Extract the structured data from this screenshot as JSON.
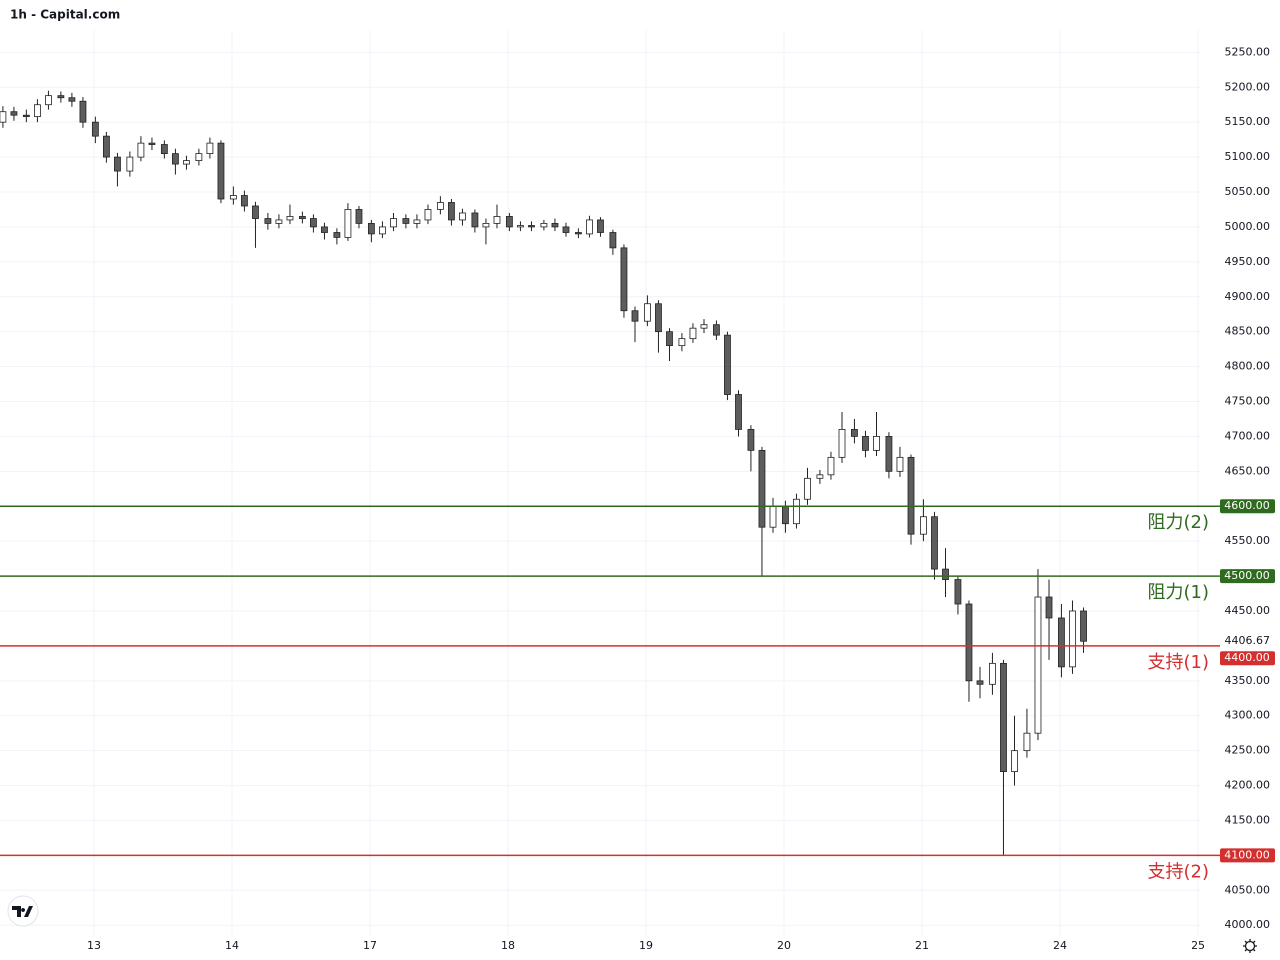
{
  "chart_data": {
    "type": "candlestick",
    "title": "1h - Capital.com",
    "x": [
      0.34,
      0.42,
      0.51,
      0.59,
      0.67,
      0.76,
      0.84,
      0.92,
      1.01,
      1.09,
      1.17,
      1.26,
      1.34,
      1.42,
      1.51,
      1.59,
      1.67,
      1.76,
      1.84,
      1.92,
      2.01,
      2.09,
      2.17,
      2.26,
      2.34,
      2.42,
      2.51,
      2.59,
      2.67,
      2.76,
      2.84,
      2.92,
      3.01,
      3.09,
      3.17,
      3.26,
      3.34,
      3.42,
      3.51,
      3.59,
      3.67,
      3.76,
      3.84,
      3.92,
      4.01,
      4.09,
      4.17,
      4.26,
      4.34,
      4.42,
      4.51,
      4.59,
      4.67,
      4.76,
      4.84,
      4.92,
      5.01,
      5.09,
      5.17,
      5.26,
      5.34,
      5.42,
      5.51,
      5.59,
      5.67,
      5.76,
      5.84,
      5.92,
      6.01,
      6.09,
      6.17,
      6.26,
      6.34,
      6.42,
      6.51,
      6.59,
      6.67,
      6.76,
      6.84,
      6.92,
      7.01,
      7.09,
      7.17,
      7.26,
      7.34,
      7.42,
      7.51,
      7.59,
      7.67,
      7.76,
      7.84,
      7.92,
      8.01,
      8.09,
      8.17
    ],
    "open": [
      5150,
      5165,
      5160,
      5158,
      5175,
      5188,
      5185,
      5180,
      5150,
      5130,
      5100,
      5080,
      5100,
      5120,
      5118,
      5105,
      5090,
      5095,
      5105,
      5120,
      5040,
      5045,
      5030,
      5012,
      5005,
      5010,
      5015,
      5012,
      5000,
      4992,
      4985,
      5025,
      5005,
      4990,
      5000,
      5012,
      5005,
      5010,
      5025,
      5035,
      5010,
      5020,
      5000,
      5005,
      5015,
      5000,
      5002,
      5000,
      5005,
      5000,
      4992,
      4990,
      5010,
      4992,
      4970,
      4880,
      4865,
      4890,
      4850,
      4830,
      4840,
      4855,
      4860,
      4845,
      4760,
      4710,
      4680,
      4570,
      4600,
      4575,
      4610,
      4640,
      4645,
      4670,
      4710,
      4700,
      4680,
      4700,
      4650,
      4670,
      4560,
      4585,
      4510,
      4495,
      4460,
      4350,
      4345,
      4375,
      4220,
      4250,
      4275,
      4470,
      4440,
      4370,
      4450
    ],
    "high": [
      5173,
      5172,
      5168,
      5183,
      5195,
      5194,
      5192,
      5186,
      5158,
      5136,
      5106,
      5108,
      5130,
      5128,
      5124,
      5112,
      5102,
      5112,
      5128,
      5124,
      5058,
      5052,
      5036,
      5020,
      5018,
      5032,
      5022,
      5018,
      5006,
      4998,
      5034,
      5030,
      5010,
      5008,
      5020,
      5018,
      5018,
      5032,
      5044,
      5040,
      5026,
      5025,
      5012,
      5032,
      5020,
      5008,
      5008,
      5010,
      5012,
      5006,
      4998,
      5016,
      5014,
      4996,
      4975,
      4886,
      4902,
      4895,
      4855,
      4848,
      4862,
      4868,
      4866,
      4850,
      4766,
      4716,
      4685,
      4612,
      4608,
      4618,
      4655,
      4652,
      4678,
      4735,
      4725,
      4708,
      4735,
      4706,
      4685,
      4674,
      4610,
      4592,
      4540,
      4500,
      4465,
      4370,
      4390,
      4380,
      4300,
      4310,
      4510,
      4495,
      4460,
      4465,
      4455
    ],
    "low": [
      5142,
      5152,
      5150,
      5150,
      5168,
      5178,
      5172,
      5142,
      5120,
      5092,
      5058,
      5072,
      5094,
      5110,
      5098,
      5075,
      5082,
      5088,
      5098,
      5034,
      5032,
      5022,
      4970,
      4996,
      4998,
      5004,
      5005,
      4992,
      4982,
      4975,
      4980,
      4998,
      4978,
      4984,
      4994,
      4998,
      4998,
      5004,
      5018,
      5002,
      5002,
      4992,
      4975,
      4998,
      4994,
      4994,
      4994,
      4995,
      4994,
      4986,
      4984,
      4985,
      4986,
      4960,
      4870,
      4835,
      4858,
      4820,
      4808,
      4822,
      4834,
      4848,
      4838,
      4752,
      4700,
      4650,
      4500,
      4562,
      4562,
      4568,
      4602,
      4632,
      4638,
      4662,
      4690,
      4670,
      4672,
      4640,
      4642,
      4545,
      4550,
      4495,
      4470,
      4445,
      4320,
      4325,
      4330,
      4100,
      4200,
      4240,
      4265,
      4380,
      4355,
      4360,
      4390
    ],
    "close": [
      5165,
      5160,
      5158,
      5175,
      5188,
      5185,
      5180,
      5150,
      5130,
      5100,
      5080,
      5100,
      5120,
      5118,
      5105,
      5090,
      5095,
      5105,
      5120,
      5040,
      5045,
      5030,
      5012,
      5005,
      5010,
      5015,
      5012,
      5000,
      4992,
      4985,
      5025,
      5005,
      4990,
      5000,
      5012,
      5005,
      5010,
      5025,
      5035,
      5010,
      5020,
      5000,
      5005,
      5015,
      5000,
      5002,
      5000,
      5005,
      5000,
      4992,
      4990,
      5010,
      4992,
      4970,
      4880,
      4865,
      4890,
      4850,
      4830,
      4840,
      4855,
      4860,
      4845,
      4760,
      4710,
      4680,
      4570,
      4600,
      4575,
      4610,
      4640,
      4645,
      4670,
      4710,
      4700,
      4680,
      4700,
      4650,
      4670,
      4560,
      4585,
      4510,
      4495,
      4460,
      4350,
      4345,
      4375,
      4220,
      4250,
      4275,
      4470,
      4440,
      4370,
      4450,
      4406.67
    ],
    "up_color": "#ffffff",
    "down_color": "#5d5d5d",
    "outline_color": "#222222",
    "levels": {
      "names": [
        "阻力(2)",
        "阻力(1)",
        "支持(1)",
        "支持(2)"
      ],
      "values": [
        4600,
        4500,
        4400,
        4100
      ],
      "value_labels": [
        "4600.00",
        "4500.00",
        "4400.00",
        "4100.00"
      ],
      "colors": [
        "#2e6b1e",
        "#2e6b1e",
        "#d32f2f",
        "#d32f2f"
      ]
    },
    "xlim": [
      0.319,
      9.014
    ],
    "xticks": [
      {
        "value": 1,
        "label": "13"
      },
      {
        "value": 2,
        "label": "14"
      },
      {
        "value": 3,
        "label": "17"
      },
      {
        "value": 4,
        "label": "18"
      },
      {
        "value": 5,
        "label": "19"
      },
      {
        "value": 6,
        "label": "20"
      },
      {
        "value": 7,
        "label": "21"
      },
      {
        "value": 8,
        "label": "24"
      },
      {
        "value": 9,
        "label": "25"
      }
    ],
    "ylim": [
      3986,
      5282
    ],
    "yticks": [
      {
        "value": 4000,
        "label": "4000.00"
      },
      {
        "value": 4050,
        "label": "4050.00"
      },
      {
        "value": 4150,
        "label": "4150.00"
      },
      {
        "value": 4200,
        "label": "4200.00"
      },
      {
        "value": 4250,
        "label": "4250.00"
      },
      {
        "value": 4300,
        "label": "4300.00"
      },
      {
        "value": 4350,
        "label": "4350.00"
      },
      {
        "value": 4450,
        "label": "4450.00"
      },
      {
        "value": 4550,
        "label": "4550.00"
      },
      {
        "value": 4650,
        "label": "4650.00"
      },
      {
        "value": 4700,
        "label": "4700.00"
      },
      {
        "value": 4750,
        "label": "4750.00"
      },
      {
        "value": 4800,
        "label": "4800.00"
      },
      {
        "value": 4850,
        "label": "4850.00"
      },
      {
        "value": 4900,
        "label": "4900.00"
      },
      {
        "value": 4950,
        "label": "4950.00"
      },
      {
        "value": 5000,
        "label": "5000.00"
      },
      {
        "value": 5050,
        "label": "5050.00"
      },
      {
        "value": 5100,
        "label": "5100.00"
      },
      {
        "value": 5150,
        "label": "5150.00"
      },
      {
        "value": 5200,
        "label": "5200.00"
      },
      {
        "value": 5250,
        "label": "5250.00"
      }
    ],
    "grid": true
  }
}
